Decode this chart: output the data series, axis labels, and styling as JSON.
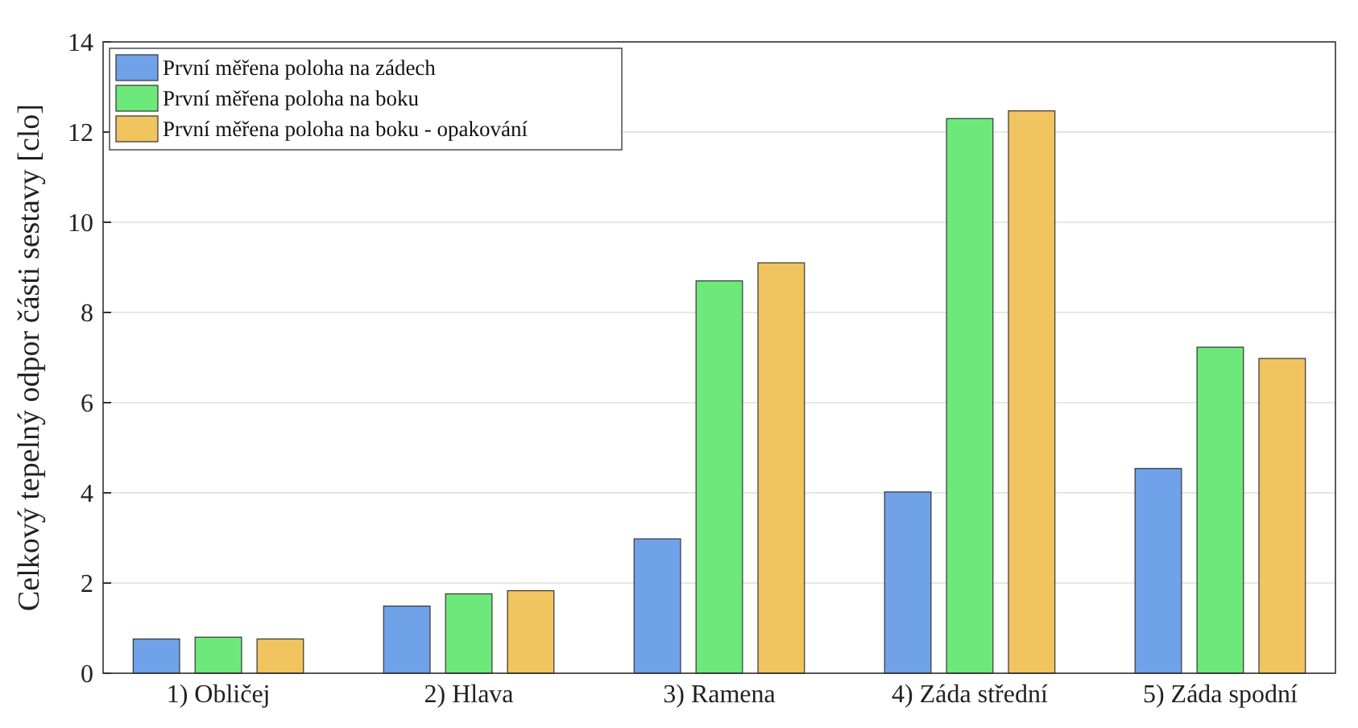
{
  "chart_data": {
    "type": "bar",
    "ylabel": "Celkový tepelný odpor části sestavy [clo]",
    "categories": [
      "1) Obličej",
      "2) Hlava",
      "3) Ramena",
      "4) Záda střední",
      "5) Záda spodní"
    ],
    "series": [
      {
        "name": "První měřena poloha na zádech",
        "color": "#6fa2e8",
        "values": [
          0.76,
          1.49,
          2.98,
          4.02,
          4.54
        ]
      },
      {
        "name": "První měřena poloha na boku",
        "color": "#6de87a",
        "values": [
          0.8,
          1.76,
          8.7,
          12.3,
          7.23
        ]
      },
      {
        "name": "První měřena poloha na boku - opakování",
        "color": "#f0c45e",
        "values": [
          0.76,
          1.83,
          9.1,
          12.47,
          6.98
        ]
      }
    ],
    "ylim": [
      0,
      14
    ],
    "yticks": [
      0,
      2,
      4,
      6,
      8,
      10,
      12,
      14
    ],
    "grid": "y",
    "legend": "top left"
  }
}
